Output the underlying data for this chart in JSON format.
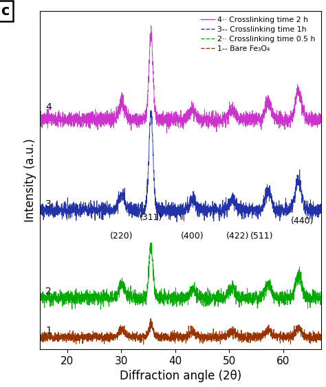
{
  "xlabel": "Diffraction angle (2θ)",
  "ylabel": "Intensity (a.u.)",
  "xlim": [
    15,
    67
  ],
  "colors": {
    "curve1": "#993300",
    "curve2": "#00aa00",
    "curve3": "#2233aa",
    "curve4": "#cc33cc"
  },
  "offsets": [
    0.0,
    0.13,
    0.42,
    0.72
  ],
  "peak_positions": [
    30.1,
    35.5,
    43.2,
    50.5,
    57.2,
    62.8
  ],
  "peak_widths": [
    0.55,
    0.38,
    0.55,
    0.6,
    0.55,
    0.55
  ],
  "noise_level": 0.011,
  "background_color": "#ffffff",
  "seed": 7
}
